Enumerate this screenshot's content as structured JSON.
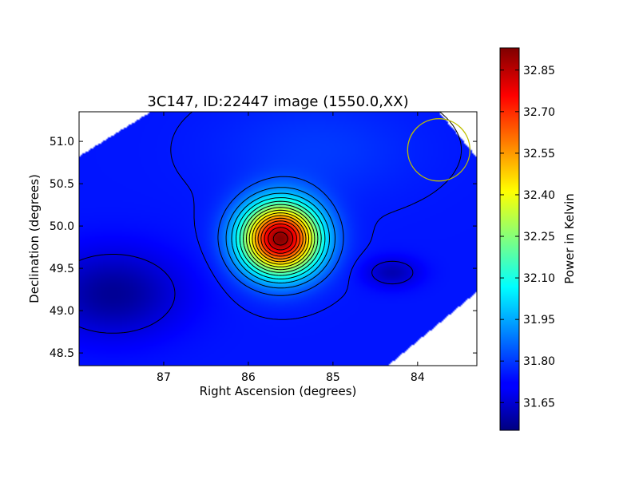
{
  "chart_data": {
    "type": "heatmap",
    "title": "3C147, ID:22447 image (1550.0,XX)",
    "xlabel": "Right Ascension (degrees)",
    "ylabel": "Declination (degrees)",
    "xlim": [
      88.0,
      83.3
    ],
    "ylim": [
      48.35,
      51.35
    ],
    "x_ticks": [
      87,
      86,
      85,
      84
    ],
    "x_tick_labels": [
      "87",
      "86",
      "85",
      "84"
    ],
    "y_ticks": [
      48.5,
      49.0,
      49.5,
      50.0,
      50.5,
      51.0
    ],
    "y_tick_labels": [
      "48.5",
      "49.0",
      "49.5",
      "50.0",
      "50.5",
      "51.0"
    ],
    "colormap": "jet",
    "colorbar": {
      "label": "Power in Kelvin",
      "range": [
        31.55,
        32.93
      ],
      "ticks": [
        31.65,
        31.8,
        31.95,
        32.1,
        32.25,
        32.4,
        32.55,
        32.7,
        32.85
      ],
      "tick_labels": [
        "31.65",
        "31.80",
        "31.95",
        "32.10",
        "32.25",
        "32.40",
        "32.55",
        "32.70",
        "32.85"
      ]
    },
    "peak": {
      "ra": 85.62,
      "dec": 49.85,
      "value": 32.92
    },
    "background_value": 31.75,
    "troughs": [
      {
        "ra": 87.6,
        "dec": 49.2,
        "value": 31.58
      },
      {
        "ra": 84.3,
        "dec": 49.45,
        "value": 31.62
      }
    ],
    "beam_ellipse": {
      "ra": 83.75,
      "dec": 50.9,
      "color": "#bfbf00"
    },
    "contours": true,
    "grid": false
  }
}
